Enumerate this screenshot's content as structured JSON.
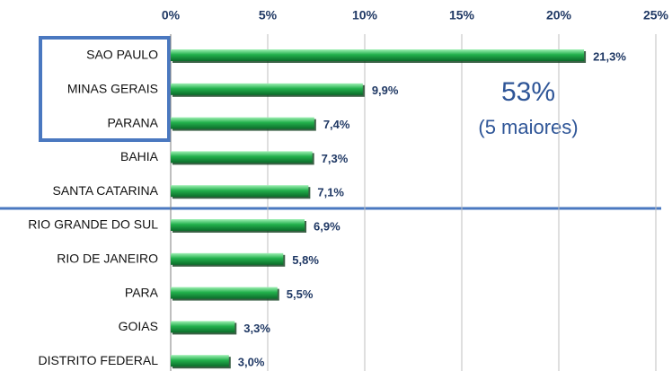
{
  "chart_data": {
    "type": "bar",
    "categories": [
      "SAO PAULO",
      "MINAS GERAIS",
      "PARANA",
      "BAHIA",
      "SANTA CATARINA",
      "RIO GRANDE DO SUL",
      "RIO DE JANEIRO",
      "PARA",
      "GOIAS",
      "DISTRITO FEDERAL"
    ],
    "values": [
      21.3,
      9.9,
      7.4,
      7.3,
      7.1,
      6.9,
      5.8,
      5.5,
      3.3,
      3.0
    ],
    "value_labels": [
      "21,3%",
      "9,9%",
      "7,4%",
      "7,3%",
      "7,1%",
      "6,9%",
      "5,8%",
      "5,5%",
      "3,3%",
      "3,0%"
    ],
    "color": "#22b04c",
    "xlim": [
      0,
      25
    ],
    "xticks": [
      {
        "value": 0,
        "label": "0%"
      },
      {
        "value": 5,
        "label": "5%"
      },
      {
        "value": 10,
        "label": "10%"
      },
      {
        "value": 15,
        "label": "15%"
      },
      {
        "value": 20,
        "label": "20%"
      },
      {
        "value": 25,
        "label": "25%"
      }
    ],
    "grid": true,
    "annotations": [
      "53%",
      "(5 maiores)"
    ]
  }
}
